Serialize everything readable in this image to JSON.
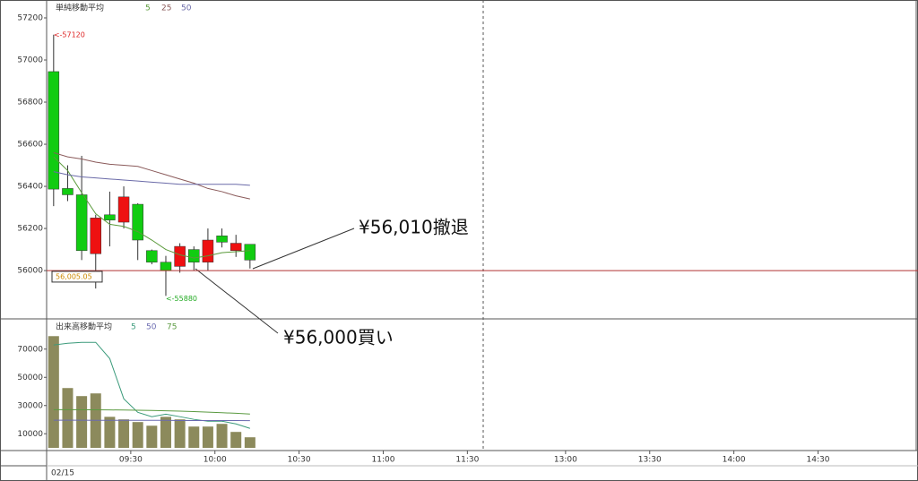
{
  "chart_data": [
    {
      "type": "candlestick",
      "legend_title": "単純移動平均",
      "categories": [
        null,
        null,
        null,
        null,
        null,
        null,
        null,
        null,
        null,
        null,
        null,
        null,
        null,
        null,
        null
      ],
      "open": [
        56945,
        56390,
        56360,
        56080,
        56265,
        56230,
        56315,
        56095,
        56040,
        56020,
        56100,
        56040,
        56165,
        56095,
        56125
      ],
      "high": [
        57120,
        56500,
        56545,
        56265,
        56375,
        56400,
        56320,
        56100,
        56070,
        56130,
        56115,
        56200,
        56200,
        56170,
        56125
      ],
      "low": [
        56306,
        56330,
        56050,
        55915,
        56115,
        56200,
        56050,
        56030,
        55880,
        55990,
        56000,
        56000,
        56110,
        56065,
        56010
      ],
      "close": [
        56387,
        56360,
        56095,
        56250,
        56240,
        56350,
        56145,
        56040,
        56000,
        56115,
        56040,
        56145,
        56135,
        56130,
        56050
      ],
      "up_color": "#ee1111",
      "down_color": "#11cc11",
      "series": [
        {
          "name": "5",
          "color": "#5a9a3a",
          "values": [
            56540,
            56475,
            56370,
            56270,
            56220,
            56210,
            56185,
            56145,
            56100,
            56075,
            56060,
            56070,
            56085,
            56090,
            56095
          ]
        },
        {
          "name": "25",
          "color": "#8a5a5a",
          "values": [
            56560,
            56540,
            56530,
            56515,
            56505,
            56500,
            56495,
            56475,
            56455,
            56435,
            56415,
            56390,
            56375,
            56355,
            56340
          ]
        },
        {
          "name": "50",
          "color": "#6a6aa8",
          "values": [
            56470,
            56455,
            56445,
            56440,
            56435,
            56430,
            56425,
            56420,
            56415,
            56410,
            56410,
            56410,
            56410,
            56410,
            56405
          ]
        }
      ],
      "ylim": [
        55775,
        57285
      ],
      "yticks": [
        56000,
        56200,
        56400,
        56600,
        56800,
        57000,
        57200
      ],
      "high_marker": {
        "value": 57120,
        "label": "<-57120"
      },
      "low_marker": {
        "value": 55880,
        "label": "<-55880"
      },
      "current_price": {
        "value": 56005.05,
        "label": "56,005.05"
      },
      "annotations": [
        {
          "value": 56010,
          "label": "¥56,010撤退"
        },
        {
          "value": 56000,
          "label": "¥56,000買い"
        }
      ]
    },
    {
      "type": "bar",
      "legend_title": "出来高移動平均",
      "categories": [
        null,
        null,
        null,
        null,
        null,
        null,
        null,
        null,
        null,
        null,
        null,
        null,
        null,
        null,
        null
      ],
      "values": [
        79200,
        42400,
        36700,
        38600,
        22000,
        20200,
        18300,
        15700,
        22000,
        20200,
        15100,
        15100,
        17000,
        11300,
        7500
      ],
      "color": "#8c8a5c",
      "series": [
        {
          "name": "5",
          "color": "#3a9a7a",
          "values": [
            72900,
            74100,
            74800,
            74800,
            63300,
            34800,
            25200,
            22100,
            23900,
            22100,
            20200,
            18900,
            18900,
            17000,
            13800
          ]
        },
        {
          "name": "50",
          "color": "#6a6ab0",
          "values": [
            19600,
            19600,
            19600,
            19500,
            19500,
            19500,
            19500,
            19500,
            19500,
            19400,
            19400,
            19400,
            19400,
            19400,
            19300
          ]
        },
        {
          "name": "75",
          "color": "#5a9a40",
          "values": [
            27100,
            27100,
            27000,
            27000,
            26900,
            26800,
            26700,
            26500,
            26300,
            26000,
            25700,
            25300,
            24900,
            24500,
            24000
          ]
        }
      ],
      "ylim": [
        0,
        90800
      ],
      "yticks": [
        10000,
        30000,
        50000,
        70000
      ],
      "xlim": [
        0,
        62
      ],
      "xticks": [
        {
          "value": 6,
          "label": "09:30"
        },
        {
          "value": 12,
          "label": "10:00"
        },
        {
          "value": 18,
          "label": "10:30"
        },
        {
          "value": 24,
          "label": "11:00"
        },
        {
          "value": 30,
          "label": "11:30"
        },
        {
          "value": 37,
          "label": "13:00"
        },
        {
          "value": 43,
          "label": "13:30"
        },
        {
          "value": 49,
          "label": "14:00"
        },
        {
          "value": 55,
          "label": "14:30"
        }
      ],
      "date": "02/15"
    }
  ]
}
